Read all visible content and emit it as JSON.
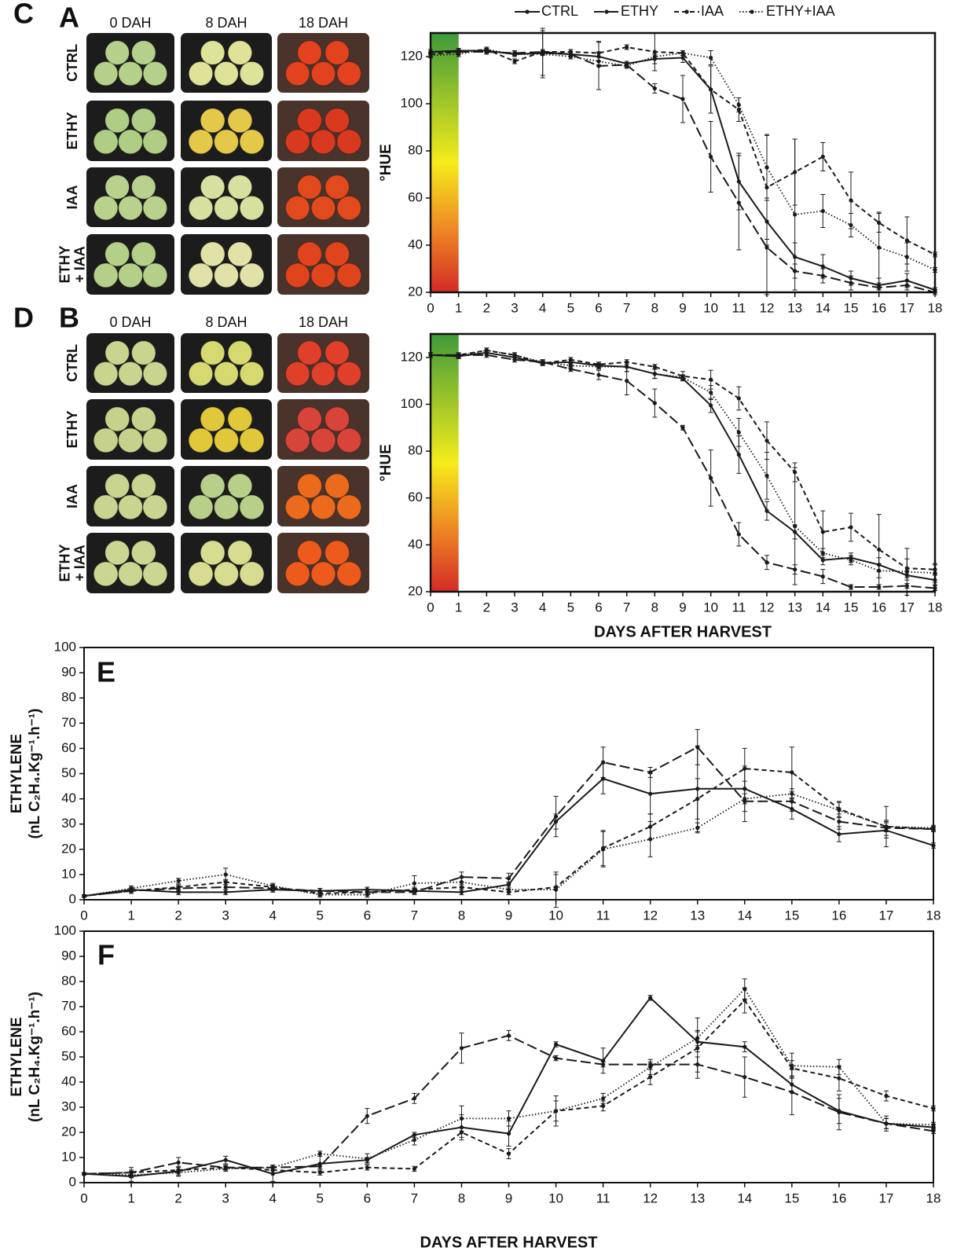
{
  "panel_a": {
    "label": "A",
    "columns": [
      "0 DAH",
      "8 DAH",
      "18 DAH"
    ],
    "rows": [
      [
        "CTRL"
      ],
      [
        "ETHY"
      ],
      [
        "IAA"
      ],
      [
        "ETHY",
        "+ IAA"
      ]
    ]
  },
  "panel_b": {
    "label": "B",
    "columns": [
      "0 DAH",
      "8 DAH",
      "18 DAH"
    ],
    "rows": [
      [
        "CTRL"
      ],
      [
        "ETHY"
      ],
      [
        "IAA"
      ],
      [
        "ETHY",
        "+ IAA"
      ]
    ]
  },
  "chart_data": [
    {
      "type": "line",
      "label": "C",
      "ylabel": [
        "°HUE"
      ],
      "hue_band": [
        0,
        1
      ],
      "xlim": [
        0,
        18
      ],
      "xticks": [
        0,
        1,
        2,
        3,
        4,
        5,
        6,
        7,
        8,
        9,
        10,
        11,
        12,
        13,
        14,
        15,
        16,
        17,
        18
      ],
      "ylim": [
        20,
        130
      ],
      "yticks": [
        20,
        40,
        60,
        80,
        100,
        120
      ],
      "series": [
        {
          "name": "CTRL",
          "color": "#1a1a1a",
          "dash": "solid",
          "values": [
            122,
            122.5,
            122.5,
            121,
            121.5,
            121,
            120,
            117,
            119,
            119.5,
            106,
            67,
            50,
            35,
            31,
            26,
            23,
            25,
            21
          ],
          "errors": [
            1,
            1,
            1,
            1,
            1,
            1,
            2,
            1,
            2,
            2,
            10,
            12,
            10,
            6,
            5,
            3,
            3,
            3,
            1
          ]
        },
        {
          "name": "ETHY",
          "color": "#1a1a1a",
          "dash": "long",
          "values": [
            122,
            122,
            122,
            121.5,
            122,
            121,
            116,
            116.5,
            106.5,
            102,
            77.5,
            58,
            39,
            29,
            27,
            24,
            22,
            23,
            20
          ],
          "errors": [
            1,
            1,
            1,
            1,
            1,
            1,
            10,
            1,
            2,
            10,
            15,
            20,
            20,
            3,
            3,
            3,
            1,
            2,
            1
          ]
        },
        {
          "name": "IAA",
          "color": "#1a1a1a",
          "dash": "short",
          "values": [
            121,
            122,
            123,
            118,
            122,
            122,
            121.5,
            124,
            122,
            121.5,
            106,
            97.5,
            64.5,
            71,
            77.5,
            59,
            49.5,
            42,
            36
          ],
          "errors": [
            1,
            1,
            1,
            1,
            10,
            1,
            5,
            1,
            8,
            1,
            10,
            5,
            22,
            14,
            6,
            12,
            4,
            10,
            1
          ]
        },
        {
          "name": "ETHY+IAA",
          "color": "#1a1a1a",
          "dash": "dotted",
          "values": [
            120.5,
            121,
            123,
            121,
            121,
            120,
            118,
            116,
            120,
            121.5,
            119.5,
            99.5,
            73,
            53,
            54.5,
            48.5,
            39,
            35,
            29.5
          ],
          "errors": [
            1,
            1,
            1,
            1,
            10,
            1,
            2,
            1,
            1,
            1,
            3,
            3,
            14,
            32,
            7,
            5,
            15,
            6,
            1
          ]
        }
      ]
    },
    {
      "type": "line",
      "label": "D",
      "ylabel": [
        "°HUE"
      ],
      "xlabel": "DAYS AFTER HARVEST",
      "hue_band": [
        0,
        1
      ],
      "xlim": [
        0,
        18
      ],
      "xticks": [
        0,
        1,
        2,
        3,
        4,
        5,
        6,
        7,
        8,
        9,
        10,
        11,
        12,
        13,
        14,
        15,
        16,
        17,
        18
      ],
      "ylim": [
        20,
        130
      ],
      "yticks": [
        20,
        40,
        60,
        80,
        100,
        120
      ],
      "series": [
        {
          "color": "#1a1a1a",
          "dash": "solid",
          "values": [
            121,
            120.5,
            122,
            120,
            117.5,
            118,
            116.5,
            116,
            113,
            111,
            99.5,
            78.5,
            54.5,
            45.5,
            33.5,
            34.5,
            31.5,
            27,
            25
          ],
          "errors": [
            1,
            1,
            1,
            1,
            1,
            1,
            1,
            2,
            2,
            1,
            3,
            8,
            4,
            3,
            2,
            2,
            3,
            2,
            2
          ]
        },
        {
          "color": "#1a1a1a",
          "dash": "long",
          "values": [
            121,
            121,
            121,
            119,
            118,
            115,
            112.5,
            110,
            100.5,
            90,
            68.5,
            44.5,
            32.5,
            29.5,
            26.5,
            22,
            22,
            22.5,
            21.5
          ],
          "errors": [
            1,
            1,
            1,
            1,
            1,
            1,
            2,
            6,
            6,
            1,
            12,
            5,
            3,
            2,
            3,
            1,
            1,
            1,
            1
          ]
        },
        {
          "color": "#1a1a1a",
          "dash": "short",
          "values": [
            121,
            121,
            123,
            121,
            117.5,
            119,
            117,
            118,
            116,
            112,
            110.5,
            102.5,
            84.5,
            71,
            45.5,
            47.5,
            38,
            30,
            29.5
          ],
          "errors": [
            1,
            1,
            1,
            1,
            1,
            1,
            1,
            1,
            1,
            2,
            4,
            5,
            8,
            4,
            9,
            6,
            15,
            4,
            2
          ]
        },
        {
          "color": "#1a1a1a",
          "dash": "dotted",
          "values": [
            121,
            120.5,
            123,
            121,
            118,
            116.5,
            116,
            116,
            113,
            111.5,
            105,
            88,
            69.5,
            48,
            36.5,
            33.5,
            29,
            28.5,
            28
          ],
          "errors": [
            1,
            1,
            1,
            1,
            1,
            1,
            1,
            2,
            2,
            1,
            3,
            6,
            10,
            25,
            2,
            2,
            3,
            10,
            4
          ]
        }
      ]
    },
    {
      "type": "line",
      "label": "E",
      "ylabel": [
        "ETHYLENE",
        "(nL C₂H₄.Kg⁻¹.h⁻¹)"
      ],
      "xlim": [
        0,
        18
      ],
      "xticks": [
        0,
        1,
        2,
        3,
        4,
        5,
        6,
        7,
        8,
        9,
        10,
        11,
        12,
        13,
        14,
        15,
        16,
        17,
        18
      ],
      "ylim": [
        0,
        100
      ],
      "yticks": [
        0,
        10,
        20,
        30,
        40,
        50,
        60,
        70,
        80,
        90,
        100
      ],
      "series": [
        {
          "color": "#1a1a1a",
          "dash": "solid",
          "values": [
            1.5,
            4,
            3,
            3,
            4,
            3.5,
            4,
            3.5,
            3,
            6,
            31,
            48,
            42,
            44,
            44,
            36,
            26,
            27.5,
            21.5
          ],
          "errors": [
            0.5,
            1,
            1,
            1,
            1,
            1,
            1,
            1,
            1,
            1,
            3,
            6,
            8,
            17,
            9,
            4,
            3,
            3,
            1
          ]
        },
        {
          "color": "#1a1a1a",
          "dash": "long",
          "values": [
            1.5,
            3.5,
            4.5,
            5,
            4.5,
            3.5,
            3,
            3,
            9,
            8.5,
            33,
            54.5,
            50.5,
            60.5,
            39,
            39,
            31,
            28.5,
            28
          ],
          "errors": [
            0.5,
            1,
            1,
            1,
            1,
            1,
            1,
            1,
            2,
            2,
            8,
            6,
            2,
            7,
            8,
            4,
            3,
            3,
            1
          ]
        },
        {
          "color": "#1a1a1a",
          "dash": "short",
          "values": [
            1.5,
            3.5,
            5,
            7,
            5,
            2.5,
            3,
            4,
            5,
            3,
            5,
            20.5,
            29,
            40,
            52,
            50.5,
            36,
            29,
            28
          ],
          "errors": [
            0.5,
            1,
            1,
            1,
            1,
            1,
            1,
            1,
            1,
            1,
            5,
            7,
            5,
            8,
            8,
            10,
            3,
            2,
            1
          ]
        },
        {
          "color": "#1a1a1a",
          "dash": "dotted",
          "values": [
            1.5,
            4.5,
            7.5,
            10,
            5.5,
            2,
            2,
            6.5,
            7,
            4,
            4,
            20,
            24,
            28.5,
            40,
            42,
            35.5,
            29,
            28.5
          ],
          "errors": [
            0.5,
            1,
            1,
            2.5,
            1,
            1,
            1,
            3,
            2,
            1,
            7,
            7,
            7,
            2,
            2,
            2,
            3,
            8,
            1
          ]
        }
      ]
    },
    {
      "type": "line",
      "label": "F",
      "ylabel": [
        "ETHYLENE",
        "(nL C₂H₄.Kg⁻¹.h⁻¹)"
      ],
      "xlabel": "DAYS AFTER HARVEST",
      "xlim": [
        0,
        18
      ],
      "xticks": [
        0,
        1,
        2,
        3,
        4,
        5,
        6,
        7,
        8,
        9,
        10,
        11,
        12,
        13,
        14,
        15,
        16,
        17,
        18
      ],
      "ylim": [
        0,
        100
      ],
      "yticks": [
        0,
        10,
        20,
        30,
        40,
        50,
        60,
        70,
        80,
        90,
        100
      ],
      "series": [
        {
          "color": "#1a1a1a",
          "dash": "solid",
          "values": [
            3.5,
            2.5,
            4.5,
            9,
            3.5,
            7.5,
            9,
            19,
            22,
            19.5,
            55,
            48.5,
            73.5,
            56,
            54,
            39,
            28.5,
            23.5,
            22
          ],
          "errors": [
            0.5,
            2,
            2,
            1.5,
            3,
            3,
            1,
            1,
            5,
            5,
            1,
            5,
            1,
            4,
            2,
            3,
            5,
            2,
            1
          ]
        },
        {
          "color": "#1a1a1a",
          "dash": "long",
          "values": [
            3.5,
            4,
            8,
            6,
            6,
            6.5,
            26.5,
            33.5,
            53.5,
            58.5,
            49.5,
            47,
            47,
            47,
            42,
            36,
            28,
            23.5,
            20.5
          ],
          "errors": [
            0.5,
            2,
            2,
            1,
            1,
            1,
            3,
            2,
            6,
            2,
            1,
            1,
            1,
            3,
            8,
            9,
            7,
            2,
            1
          ]
        },
        {
          "color": "#1a1a1a",
          "dash": "short",
          "values": [
            3.5,
            4,
            5,
            6,
            5,
            4,
            6,
            5.5,
            20,
            11.5,
            28.5,
            30.5,
            42,
            53.5,
            72.5,
            45.5,
            41.5,
            34.5,
            29.5
          ],
          "errors": [
            0.5,
            1,
            1,
            1,
            1,
            1,
            1,
            1,
            2,
            2,
            4,
            2,
            3,
            12,
            5,
            3,
            5,
            2,
            1
          ]
        },
        {
          "color": "#1a1a1a",
          "dash": "dotted",
          "values": [
            3.5,
            3,
            4,
            5.5,
            6,
            11.5,
            9.5,
            17,
            25.5,
            25.5,
            28.5,
            33.5,
            46,
            57.5,
            77,
            46.5,
            46,
            23.5,
            23
          ],
          "errors": [
            0.5,
            1,
            1,
            1,
            1,
            1,
            2,
            2,
            5,
            3,
            6,
            2,
            3,
            3,
            4,
            5,
            3,
            3,
            1
          ]
        }
      ]
    }
  ]
}
